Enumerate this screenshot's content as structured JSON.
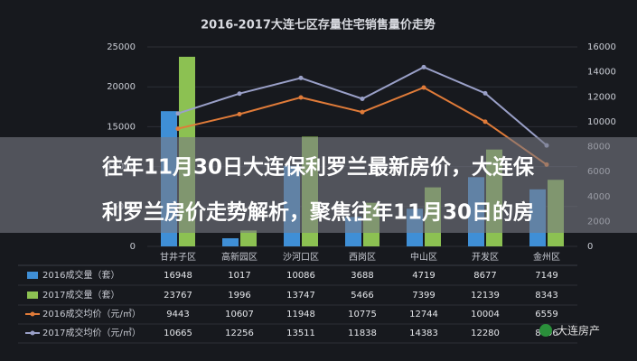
{
  "chart_data": {
    "type": "bar-line",
    "title": "2016-2017大连七区存量住宅销售量价走势",
    "categories": [
      "甘井子区",
      "高新园区",
      "沙河口区",
      "西岗区",
      "中山区",
      "开发区",
      "金州区"
    ],
    "series": [
      {
        "name": "2016成交量（套）",
        "color": "#3f8fd6",
        "type": "bar",
        "values": [
          16948,
          1017,
          10086,
          3688,
          4719,
          8677,
          7149
        ]
      },
      {
        "name": "2017成交量（套）",
        "color": "#8cc152",
        "type": "bar",
        "values": [
          23767,
          1996,
          13747,
          5466,
          7399,
          12139,
          8343
        ]
      },
      {
        "name": "2016成交均价（元/㎡）",
        "color": "#e07b39",
        "type": "line",
        "axis": "y2",
        "values": [
          9443,
          10607,
          11948,
          10775,
          12744,
          10004,
          6559
        ]
      },
      {
        "name": "2017成交均价（元/㎡）",
        "color": "#9aa0c8",
        "type": "line",
        "axis": "y2",
        "values": [
          10665,
          12256,
          13511,
          11838,
          14383,
          12280,
          8096
        ]
      }
    ],
    "ylim": [
      0,
      25000
    ],
    "yticks": [
      0,
      5000,
      10000,
      15000,
      20000,
      25000
    ],
    "y2lim": [
      0,
      16000
    ],
    "y2ticks": [
      0,
      2000,
      4000,
      6000,
      8000,
      10000,
      12000,
      14000,
      16000
    ],
    "grid": true
  },
  "overlay": {
    "lines": [
      "往年11月30日大连保利罗兰最新房价，大连保",
      "利罗兰房价走势解析，聚焦往年11月30日的房"
    ]
  },
  "watermark": "大连房产"
}
